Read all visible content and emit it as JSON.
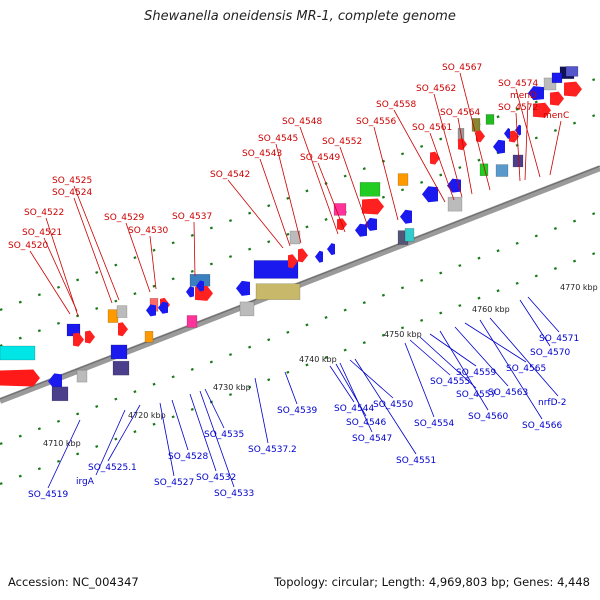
{
  "title": "Shewanella oneidensis MR-1, complete genome",
  "footer": {
    "accession": "Accession: NC_004347",
    "summary": "Topology: circular; Length: 4,969,803 bp; Genes: 4,448"
  },
  "colors": {
    "backbone": "#8c8c8c",
    "tick": "#1a7a1a",
    "label_top": "#cc0000",
    "label_bottom": "#0000cc"
  },
  "scale_labels": [
    {
      "text": "4710 kbp",
      "kbp": 4710
    },
    {
      "text": "4720 kbp",
      "kbp": 4720
    },
    {
      "text": "4730 kbp",
      "kbp": 4730
    },
    {
      "text": "4740 kbp",
      "kbp": 4740
    },
    {
      "text": "4750 kbp",
      "kbp": 4750
    },
    {
      "text": "4760 kbp",
      "kbp": 4760
    },
    {
      "text": "4770 kbp",
      "kbp": 4770
    }
  ],
  "top_genes": [
    "SO_4520",
    "SO_4521",
    "SO_4522",
    "SO_4524",
    "SO_4525",
    "SO_4529",
    "SO_4530",
    "SO_4537",
    "SO_4542",
    "SO_4543",
    "SO_4545",
    "SO_4548",
    "SO_4549",
    "SO_4552",
    "SO_4556",
    "SO_4558",
    "SO_4561",
    "SO_4562",
    "SO_4564",
    "SO_4567",
    "SO_4572",
    "menD",
    "SO_4574",
    "menC"
  ],
  "bottom_genes": [
    "SO_4519",
    "irgA",
    "SO_4525.1",
    "SO_4527",
    "SO_4528",
    "SO_4532",
    "SO_4533",
    "SO_4535",
    "SO_4537.2",
    "SO_4539",
    "SO_4544",
    "SO_4546",
    "SO_4547",
    "SO_4550",
    "SO_4551",
    "SO_4554",
    "SO_4555",
    "SO_4557",
    "SO_4559",
    "SO_4560",
    "SO_4563",
    "SO_4565",
    "SO_4566",
    "nrfD-2",
    "SO_4570",
    "SO_4571"
  ]
}
